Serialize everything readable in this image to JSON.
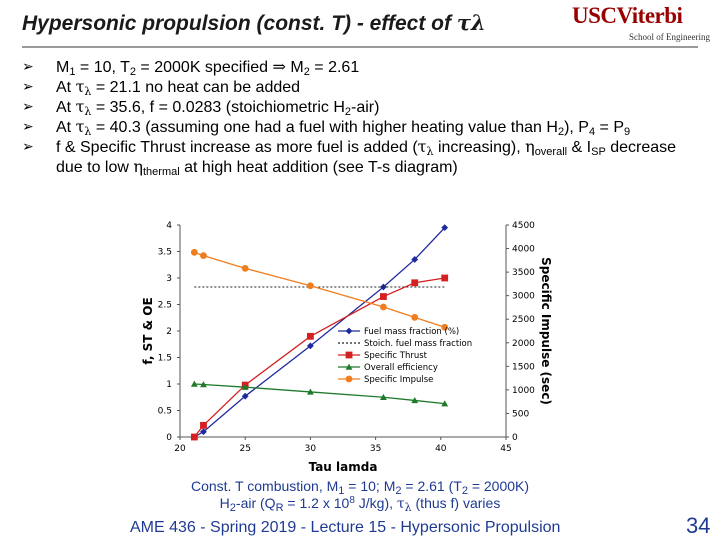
{
  "slide": {
    "title_text": "Hypersonic propulsion (const. T) - effect of ",
    "title_symbol": "τ",
    "title_sub": "λ",
    "logo_main": "USCViterbi",
    "logo_sub": "School of Engineering",
    "page_number": "34",
    "footer": "AME 436 - Spring 2019 - Lecture 15 - Hypersonic Propulsion"
  },
  "bullets": {
    "b1": {
      "t1": "M",
      "s1": "1",
      "t2": " = 10, T",
      "s2": "2",
      "t3": " = 2000K specified ",
      "arrow": "⇒",
      "t4": " M",
      "s3": "2",
      "t5": " = 2.61"
    },
    "b2": {
      "t1": "At ",
      "g1": "τ",
      "gs1": "λ",
      "t2": " = 21.1 no heat can be added"
    },
    "b3": {
      "t1": "At ",
      "g1": "τ",
      "gs1": "λ",
      "t2": " = 35.6, f = 0.0283 (stoichiometric H",
      "s1": "2",
      "t3": "-air)"
    },
    "b4": {
      "t1": "At ",
      "g1": "τ",
      "gs1": "λ",
      "t2": " = 40.3 (assuming one had a fuel with higher heating value than H",
      "s1": "2",
      "t3": "), P",
      "s2": "4",
      "t4": " = P",
      "s3": "9"
    },
    "b5": {
      "t1": "f & Specific Thrust increase as more fuel is added (",
      "g1": "τ",
      "gs1": "λ",
      "t2": " increasing), ",
      "g2": "η",
      "s1": "overall",
      "t3": " & I",
      "s2": "SP",
      "t4": " decrease due to low ",
      "g3": "η",
      "s3": "thermal",
      "t5": " at high heat addition (see T-s diagram)"
    }
  },
  "caption": {
    "l1_t1": "Const. T combustion, M",
    "l1_s1": "1",
    "l1_t2": " = 10; M",
    "l1_s2": "2",
    "l1_t3": " = 2.61 (T",
    "l1_s3": "2",
    "l1_t4": " = 2000K)",
    "l2_t1": "H",
    "l2_s1": "2",
    "l2_t2": "-air (Q",
    "l2_s2": "R",
    "l2_t3": " = 1.2 x 10",
    "l2_sup": "8",
    "l2_t4": " J/kg), ",
    "l2_g": "τ",
    "l2_gs": "λ",
    "l2_t5": " (thus f) varies"
  },
  "chart_data": {
    "type": "line",
    "xlabel": "Tau lamda",
    "ylabel": "f, ST & OE",
    "y2label": "Specific Impulse (sec)",
    "xlim": [
      20,
      45
    ],
    "ylim": [
      0,
      4
    ],
    "y2lim": [
      0,
      4500
    ],
    "xticks": [
      20,
      25,
      30,
      35,
      40,
      45
    ],
    "yticks": [
      0,
      0.5,
      1,
      1.5,
      2,
      2.5,
      3,
      3.5,
      4
    ],
    "y2ticks": [
      0,
      500,
      1000,
      1500,
      2000,
      2500,
      3000,
      3500,
      4000,
      4500
    ],
    "grid": false,
    "legend": "right",
    "series": [
      {
        "name": "Fuel mass fraction (%)",
        "axis": "left",
        "color": "#1f2a9e",
        "marker": "diamond",
        "x": [
          21.1,
          21.8,
          25,
          30,
          35.6,
          38,
          40.3
        ],
        "y": [
          0,
          0.1,
          0.77,
          1.72,
          2.83,
          3.35,
          3.95
        ]
      },
      {
        "name": "Stoich. fuel mass fraction",
        "axis": "left",
        "color": "#222222",
        "marker": "none",
        "dashed": true,
        "x": [
          21.1,
          40.3
        ],
        "y": [
          2.83,
          2.83
        ]
      },
      {
        "name": "Specific Thrust",
        "axis": "left",
        "color": "#d42020",
        "marker": "square",
        "x": [
          21.1,
          21.8,
          25,
          30,
          35.6,
          38,
          40.3
        ],
        "y": [
          0,
          0.22,
          0.98,
          1.9,
          2.65,
          2.91,
          3.0
        ]
      },
      {
        "name": "Overall efficiency",
        "axis": "left",
        "color": "#1f7a2a",
        "marker": "triangle",
        "x": [
          21.1,
          21.8,
          25,
          30,
          35.6,
          38,
          40.3
        ],
        "y": [
          1.0,
          0.99,
          0.94,
          0.85,
          0.75,
          0.69,
          0.63
        ]
      },
      {
        "name": "Specific Impulse",
        "axis": "right",
        "color": "#f07d1e",
        "marker": "circle",
        "x": [
          21.1,
          21.8,
          25,
          30,
          35.6,
          38,
          40.3
        ],
        "y": [
          3920,
          3850,
          3580,
          3210,
          2760,
          2540,
          2330
        ]
      }
    ]
  }
}
